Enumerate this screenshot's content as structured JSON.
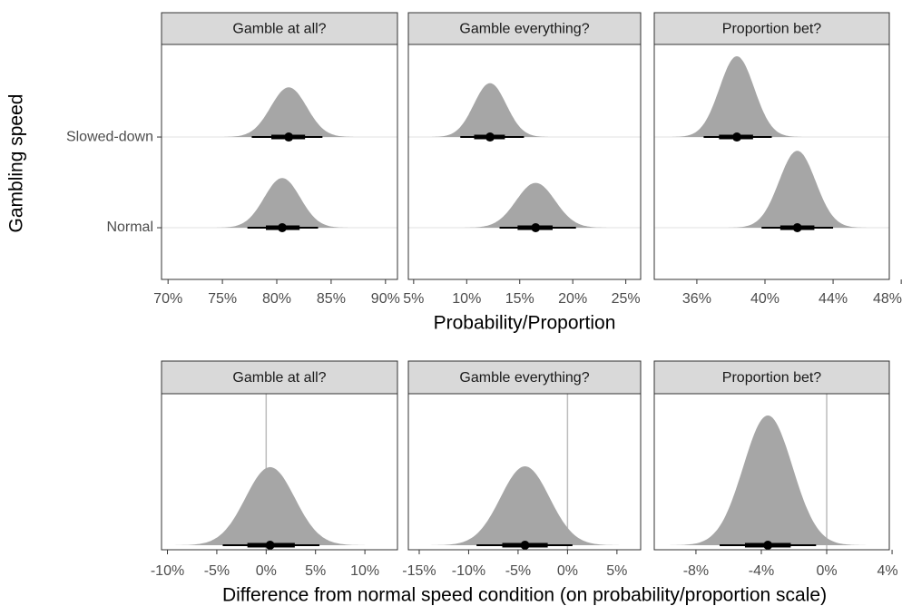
{
  "chart_data": [
    {
      "type": "halfeye",
      "ylabel": "Gambling speed",
      "xlabel": "Probability/Proportion",
      "categories": [
        "Normal",
        "Slowed-down"
      ],
      "slab_color": "#a6a6a6",
      "interval_color": "#000000",
      "panels": [
        {
          "title": "Gamble at all?",
          "xlim": [
            69.4,
            91.1
          ],
          "xticks": [
            {
              "value": 70,
              "label": "70%"
            },
            {
              "value": 75,
              "label": "75%"
            },
            {
              "value": 80,
              "label": "80%"
            },
            {
              "value": 85,
              "label": "85%"
            },
            {
              "value": 90,
              "label": "90%"
            }
          ],
          "points": [
            80.5,
            81.1
          ],
          "intervals_66": [
            [
              79.0,
              82.1
            ],
            [
              79.5,
              82.6
            ]
          ],
          "intervals_95": [
            [
              77.3,
              83.8
            ],
            [
              77.7,
              84.2
            ]
          ]
        },
        {
          "title": "Gamble everything?",
          "xlim": [
            4.5,
            26.4
          ],
          "xticks": [
            {
              "value": 5,
              "label": "5%"
            },
            {
              "value": 10,
              "label": "10%"
            },
            {
              "value": 15,
              "label": "15%"
            },
            {
              "value": 20,
              "label": "20%"
            },
            {
              "value": 25,
              "label": "25%"
            }
          ],
          "points": [
            16.5,
            12.2
          ],
          "intervals_66": [
            [
              14.8,
              18.1
            ],
            [
              10.7,
              13.6
            ]
          ],
          "intervals_95": [
            [
              13.1,
              20.3
            ],
            [
              9.4,
              15.4
            ]
          ]
        },
        {
          "title": "Proportion bet?",
          "xlim": [
            33.5,
            47.3
          ],
          "xticks": [
            {
              "value": 36,
              "label": "36%"
            },
            {
              "value": 40,
              "label": "40%"
            },
            {
              "value": 44,
              "label": "44%"
            },
            {
              "value": 48,
              "label": "48%"
            }
          ],
          "points": [
            41.9,
            38.35
          ],
          "intervals_66": [
            [
              40.9,
              42.9
            ],
            [
              37.3,
              39.3
            ]
          ],
          "intervals_95": [
            [
              39.8,
              44.0
            ],
            [
              36.4,
              40.4
            ]
          ]
        }
      ]
    },
    {
      "type": "halfeye",
      "xlabel": "Difference from normal speed condition (on probability/proportion scale)",
      "slab_color": "#a6a6a6",
      "interval_color": "#000000",
      "vline_color": "#bdbdbd",
      "panels": [
        {
          "title": "Gamble at all?",
          "xlim": [
            -10.6,
            13.3
          ],
          "vline": 0,
          "xticks": [
            {
              "value": -10,
              "label": "-10%"
            },
            {
              "value": -5,
              "label": "-5%"
            },
            {
              "value": 0,
              "label": "0%"
            },
            {
              "value": 5,
              "label": "5%"
            },
            {
              "value": 10,
              "label": "10%"
            }
          ],
          "points": [
            0.4
          ],
          "intervals_66": [
            [
              -1.9,
              2.9
            ]
          ],
          "intervals_95": [
            [
              -4.4,
              5.4
            ]
          ]
        },
        {
          "title": "Gamble everything?",
          "xlim": [
            -16.1,
            7.4
          ],
          "vline": 0,
          "xticks": [
            {
              "value": -15,
              "label": "-15%"
            },
            {
              "value": -10,
              "label": "-10%"
            },
            {
              "value": -5,
              "label": "-5%"
            },
            {
              "value": 0,
              "label": "0%"
            },
            {
              "value": 5,
              "label": "5%"
            }
          ],
          "points": [
            -4.3
          ],
          "intervals_66": [
            [
              -6.6,
              -2.0
            ]
          ],
          "intervals_95": [
            [
              -9.2,
              0.5
            ]
          ]
        },
        {
          "title": "Proportion bet?",
          "xlim": [
            -10.55,
            3.83
          ],
          "vline": 0,
          "xticks": [
            {
              "value": -8,
              "label": "-8%"
            },
            {
              "value": -4,
              "label": "-4%"
            },
            {
              "value": 0,
              "label": "0%"
            },
            {
              "value": 4,
              "label": "4%"
            }
          ],
          "points": [
            -3.6
          ],
          "intervals_66": [
            [
              -5.0,
              -2.2
            ]
          ],
          "intervals_95": [
            [
              -6.55,
              -0.65
            ]
          ]
        }
      ]
    }
  ]
}
